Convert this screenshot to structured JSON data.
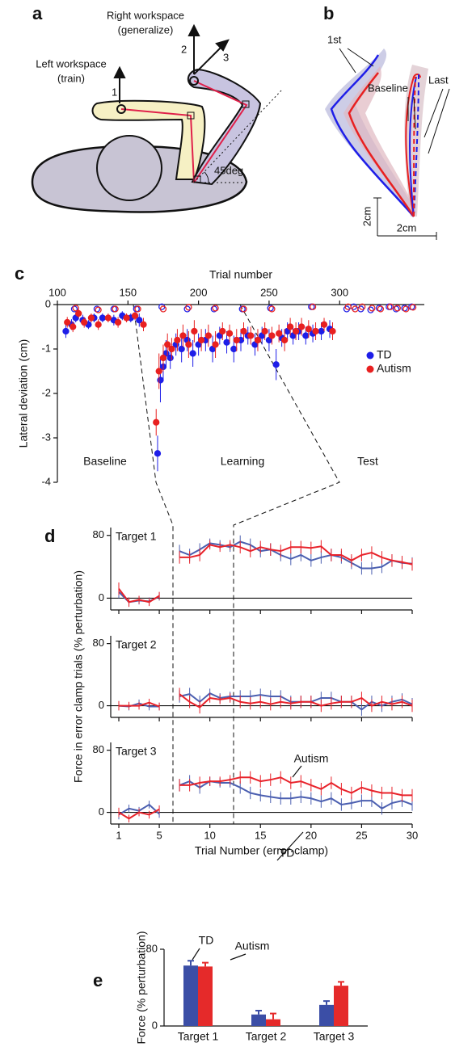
{
  "diagram_a": {
    "panel": "a",
    "right_1": "Right workspace",
    "right_2": "(generalize)",
    "left_1": "Left workspace",
    "left_2": "(train)",
    "n1": "1",
    "n2": "2",
    "n3": "3",
    "angle": "45deg"
  },
  "diagram_b": {
    "panel": "b",
    "first": "1st",
    "baseline": "Baseline",
    "last": "Last",
    "scale_v": "2cm",
    "scale_h": "2cm"
  },
  "chart_data": [
    {
      "type": "scatter",
      "panel": "c",
      "xlabel": "Trial number",
      "ylabel": "Lateral deviation (cm)",
      "xlim": [
        100,
        360
      ],
      "xticks": [
        100,
        150,
        200,
        250,
        300
      ],
      "ylim": [
        -4,
        0
      ],
      "yticks": [
        0,
        -1,
        -2,
        -3,
        -4
      ],
      "region_labels": [
        "Baseline",
        "Learning",
        "Test"
      ],
      "legend": "right",
      "series": [
        {
          "name": "TD",
          "color": "#1e1ee8",
          "x": [
            106,
            110,
            113,
            118,
            122,
            126,
            132,
            140,
            146,
            152,
            158,
            171,
            173,
            175,
            177,
            180,
            184,
            188,
            192,
            196,
            200,
            205,
            210,
            215,
            220,
            225,
            230,
            235,
            240,
            245,
            250,
            255,
            259,
            263,
            267,
            271,
            276,
            281,
            287,
            293
          ],
          "values": [
            -0.6,
            -0.45,
            -0.3,
            -0.35,
            -0.45,
            -0.3,
            -0.3,
            -0.35,
            -0.25,
            -0.3,
            -0.35,
            -3.35,
            -1.7,
            -1.4,
            -1.1,
            -1.2,
            -0.9,
            -1.0,
            -0.8,
            -1.1,
            -0.9,
            -0.8,
            -1.0,
            -0.7,
            -0.85,
            -1.0,
            -0.8,
            -0.7,
            -0.9,
            -0.7,
            -0.8,
            -1.35,
            -0.75,
            -0.6,
            -0.7,
            -0.6,
            -0.7,
            -0.65,
            -0.6,
            -0.55
          ],
          "errors": [
            0.15,
            0.12,
            0.1,
            0.12,
            0.1,
            0.1,
            0.1,
            0.12,
            0.1,
            0.1,
            0.15,
            0.4,
            0.5,
            0.3,
            0.3,
            0.25,
            0.25,
            0.3,
            0.25,
            0.3,
            0.25,
            0.25,
            0.3,
            0.2,
            0.25,
            0.3,
            0.25,
            0.2,
            0.25,
            0.2,
            0.25,
            0.35,
            0.2,
            0.2,
            0.2,
            0.2,
            0.2,
            0.2,
            0.2,
            0.2
          ]
        },
        {
          "name": "Autism",
          "color": "#e82020",
          "x": [
            107,
            111,
            115,
            119,
            124,
            129,
            136,
            143,
            149,
            155,
            161,
            170,
            172,
            175,
            178,
            181,
            185,
            189,
            193,
            197,
            202,
            207,
            212,
            217,
            222,
            227,
            232,
            237,
            242,
            247,
            252,
            257,
            261,
            265,
            269,
            273,
            278,
            283,
            289,
            295
          ],
          "values": [
            -0.4,
            -0.5,
            -0.2,
            -0.4,
            -0.3,
            -0.45,
            -0.3,
            -0.4,
            -0.3,
            -0.25,
            -0.45,
            -2.65,
            -1.5,
            -1.2,
            -0.9,
            -1.0,
            -0.8,
            -0.7,
            -0.9,
            -0.6,
            -0.8,
            -0.7,
            -0.9,
            -0.6,
            -0.65,
            -0.8,
            -0.6,
            -0.7,
            -0.8,
            -0.6,
            -0.7,
            -0.65,
            -0.8,
            -0.5,
            -0.6,
            -0.5,
            -0.55,
            -0.6,
            -0.45,
            -0.6
          ],
          "errors": [
            0.12,
            0.12,
            0.1,
            0.12,
            0.1,
            0.12,
            0.1,
            0.12,
            0.1,
            0.1,
            0.15,
            0.3,
            0.4,
            0.3,
            0.25,
            0.25,
            0.25,
            0.25,
            0.3,
            0.25,
            0.25,
            0.25,
            0.3,
            0.2,
            0.2,
            0.25,
            0.2,
            0.2,
            0.25,
            0.2,
            0.2,
            0.2,
            0.25,
            0.2,
            0.2,
            0.2,
            0.2,
            0.2,
            0.15,
            0.2
          ]
        },
        {
          "color": "#1e1ee8",
          "marker": "open",
          "x": [
            112,
            128,
            140,
            156,
            174,
            192,
            211,
            231,
            251,
            280,
            305,
            310,
            315,
            322,
            328,
            335,
            340,
            346,
            351
          ],
          "values": [
            -0.1,
            -0.1,
            -0.1,
            -0.1,
            -0.05,
            -0.1,
            -0.1,
            -0.1,
            -0.08,
            -0.05,
            -0.1,
            -0.05,
            -0.1,
            -0.12,
            -0.08,
            -0.05,
            -0.1,
            -0.08,
            -0.05
          ]
        },
        {
          "color": "#e82020",
          "marker": "open",
          "x": [
            113,
            129,
            141,
            157,
            175,
            193,
            212,
            232,
            252,
            281,
            306,
            311,
            316,
            323,
            329,
            336,
            341,
            347,
            352
          ],
          "values": [
            -0.08,
            -0.12,
            -0.1,
            -0.1,
            -0.1,
            -0.06,
            -0.08,
            -0.1,
            -0.1,
            -0.05,
            -0.05,
            -0.1,
            -0.05,
            -0.08,
            -0.1,
            -0.05,
            -0.08,
            -0.1,
            -0.06
          ]
        }
      ]
    },
    {
      "type": "line",
      "panel": "d",
      "title": "Target 1",
      "xlim": [
        0.2,
        30
      ],
      "xticks": [
        1,
        5,
        10,
        15,
        20,
        25,
        30
      ],
      "ylim": [
        -15,
        90
      ],
      "yticks": [
        0,
        80
      ],
      "x": [
        1,
        2,
        3,
        4,
        5,
        6,
        7,
        8,
        9,
        10,
        11,
        12,
        13,
        14,
        15,
        16,
        17,
        18,
        19,
        20,
        21,
        22,
        23,
        24,
        25,
        26,
        27,
        28,
        29,
        30
      ],
      "series": [
        {
          "name": "TD",
          "color": "#4b5fb0",
          "values": [
            8,
            -5,
            -3,
            -4,
            2,
            null,
            60,
            55,
            62,
            70,
            68,
            65,
            72,
            68,
            60,
            62,
            55,
            50,
            55,
            48,
            52,
            55,
            52,
            45,
            38,
            38,
            40,
            48,
            45,
            44
          ],
          "errors": [
            8,
            6,
            5,
            5,
            5,
            null,
            8,
            8,
            8,
            6,
            6,
            6,
            8,
            8,
            8,
            8,
            8,
            8,
            8,
            8,
            8,
            8,
            8,
            8,
            8,
            8,
            8,
            8,
            8,
            8
          ]
        },
        {
          "name": "Autism",
          "color": "#e8222a",
          "values": [
            12,
            -5,
            -2,
            -5,
            3,
            null,
            52,
            52,
            55,
            68,
            65,
            68,
            65,
            60,
            65,
            62,
            60,
            65,
            65,
            64,
            66,
            55,
            55,
            48,
            55,
            58,
            52,
            48,
            46,
            43
          ],
          "errors": [
            8,
            6,
            5,
            5,
            5,
            null,
            8,
            8,
            8,
            6,
            6,
            6,
            8,
            8,
            8,
            8,
            8,
            8,
            8,
            8,
            8,
            8,
            8,
            8,
            8,
            8,
            8,
            8,
            8,
            8
          ]
        }
      ]
    },
    {
      "type": "line",
      "title": "Target 2",
      "ylabel": "Force in error clamp trials (% perturbation)",
      "xlim": [
        0.2,
        30
      ],
      "xticks": [
        1,
        5,
        10,
        15,
        20,
        25,
        30
      ],
      "ylim": [
        -15,
        90
      ],
      "yticks": [
        0,
        80
      ],
      "x": [
        1,
        2,
        3,
        4,
        5,
        6,
        7,
        8,
        9,
        10,
        11,
        12,
        13,
        14,
        15,
        16,
        17,
        18,
        19,
        20,
        21,
        22,
        23,
        24,
        25,
        26,
        27,
        28,
        29,
        30
      ],
      "series": [
        {
          "name": "TD",
          "color": "#4b5fb0",
          "values": [
            0,
            -1,
            3,
            -1,
            -1,
            null,
            12,
            15,
            5,
            16,
            10,
            12,
            12,
            12,
            14,
            12,
            12,
            5,
            5,
            5,
            10,
            10,
            5,
            5,
            -5,
            5,
            0,
            5,
            8,
            2
          ],
          "errors": [
            6,
            5,
            5,
            5,
            5,
            null,
            8,
            8,
            8,
            6,
            6,
            6,
            8,
            8,
            8,
            8,
            8,
            8,
            8,
            8,
            8,
            8,
            8,
            8,
            8,
            8,
            8,
            8,
            8,
            8
          ]
        },
        {
          "name": "Autism",
          "color": "#e8222a",
          "values": [
            0,
            0,
            0,
            4,
            -1,
            null,
            15,
            5,
            -2,
            10,
            8,
            10,
            5,
            3,
            5,
            2,
            5,
            3,
            5,
            5,
            0,
            3,
            5,
            5,
            10,
            0,
            5,
            2,
            5,
            0
          ],
          "errors": [
            6,
            5,
            5,
            5,
            5,
            null,
            8,
            8,
            8,
            6,
            6,
            6,
            8,
            8,
            8,
            8,
            8,
            8,
            8,
            8,
            8,
            8,
            8,
            8,
            8,
            8,
            8,
            8,
            8,
            8
          ]
        }
      ]
    },
    {
      "type": "line",
      "title": "Target 3",
      "xlabel": "Trial Number (error-clamp)",
      "xlim": [
        0.2,
        30
      ],
      "xticks": [
        1,
        5,
        10,
        15,
        20,
        25,
        30
      ],
      "ylim": [
        -15,
        90
      ],
      "yticks": [
        0,
        80
      ],
      "annotations": [
        "Autism",
        "TD"
      ],
      "x": [
        1,
        2,
        3,
        4,
        5,
        6,
        7,
        8,
        9,
        10,
        11,
        12,
        13,
        14,
        15,
        16,
        17,
        18,
        19,
        20,
        21,
        22,
        23,
        24,
        25,
        26,
        27,
        28,
        29,
        30
      ],
      "series": [
        {
          "name": "TD",
          "color": "#4b5fb0",
          "values": [
            -3,
            5,
            2,
            10,
            -2,
            null,
            35,
            40,
            32,
            40,
            38,
            38,
            32,
            25,
            22,
            20,
            18,
            18,
            20,
            18,
            14,
            18,
            10,
            12,
            15,
            15,
            5,
            12,
            15,
            10
          ],
          "errors": [
            6,
            5,
            5,
            5,
            5,
            null,
            8,
            8,
            8,
            6,
            6,
            6,
            8,
            8,
            8,
            8,
            8,
            8,
            8,
            8,
            8,
            8,
            8,
            8,
            8,
            8,
            8,
            8,
            8,
            8
          ]
        },
        {
          "name": "Autism",
          "color": "#e8222a",
          "values": [
            0,
            -8,
            0,
            -3,
            4,
            null,
            35,
            35,
            38,
            40,
            40,
            42,
            45,
            45,
            40,
            42,
            45,
            38,
            40,
            35,
            30,
            38,
            30,
            25,
            32,
            28,
            25,
            25,
            22,
            22
          ],
          "errors": [
            6,
            5,
            5,
            5,
            5,
            null,
            8,
            8,
            8,
            6,
            6,
            6,
            8,
            8,
            8,
            8,
            8,
            8,
            8,
            8,
            8,
            8,
            8,
            8,
            8,
            8,
            8,
            8,
            8,
            8
          ]
        }
      ]
    },
    {
      "type": "bar",
      "panel": "e",
      "ylabel": "Force (% perturbation)",
      "ylim": [
        0,
        80
      ],
      "yticks": [
        0,
        80
      ],
      "categories": [
        "Target 1",
        "Target 2",
        "Target 3"
      ],
      "annotations": [
        "TD",
        "Autism"
      ],
      "series": [
        {
          "name": "TD",
          "color": "#3b4ea6",
          "values": [
            63,
            12,
            22
          ],
          "errors": [
            5,
            4,
            4
          ]
        },
        {
          "name": "Autism",
          "color": "#e52a2a",
          "values": [
            62,
            7,
            42
          ],
          "errors": [
            4,
            6,
            4
          ]
        }
      ]
    }
  ]
}
